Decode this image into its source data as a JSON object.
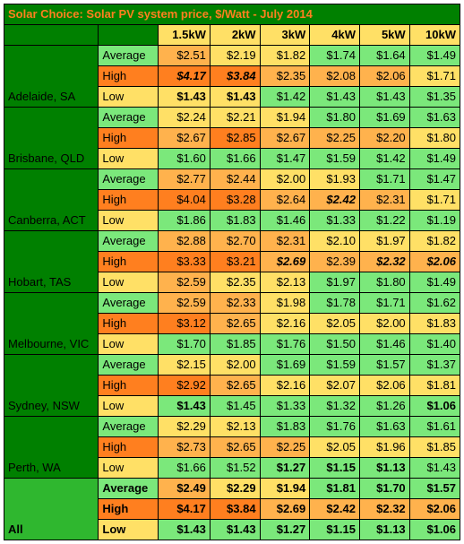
{
  "title": "Solar Choice: Solar PV system price, $/Watt - July 2014",
  "colors": {
    "darkGreen": "#008000",
    "mediumGreen": "#2fb72f",
    "lightGreen": "#7be87b",
    "yellow": "#ffe066",
    "lightOrange": "#ffb24d",
    "orange": "#ff7f1f",
    "titleText": "#ff7f1f",
    "titleBg": "#008000"
  },
  "headers": [
    "1.5kW",
    "2kW",
    "3kW",
    "4kW",
    "5kW",
    "10kW"
  ],
  "stats": [
    "Average",
    "High",
    "Low"
  ],
  "cities": [
    {
      "name": "Adelaide, SA",
      "rows": [
        {
          "stat": "Average",
          "bg": "lightGreen",
          "vals": [
            {
              "v": "$2.51",
              "bg": "lightOrange"
            },
            {
              "v": "$2.19",
              "bg": "yellow"
            },
            {
              "v": "$1.82",
              "bg": "yellow"
            },
            {
              "v": "$1.74",
              "bg": "lightGreen"
            },
            {
              "v": "$1.64",
              "bg": "lightGreen"
            },
            {
              "v": "$1.49",
              "bg": "lightGreen"
            }
          ]
        },
        {
          "stat": "High",
          "bg": "orange",
          "vals": [
            {
              "v": "$4.17",
              "bg": "orange",
              "style": "italic"
            },
            {
              "v": "$3.84",
              "bg": "orange",
              "style": "italic"
            },
            {
              "v": "$2.35",
              "bg": "lightOrange"
            },
            {
              "v": "$2.08",
              "bg": "lightOrange"
            },
            {
              "v": "$2.06",
              "bg": "lightOrange"
            },
            {
              "v": "$1.71",
              "bg": "yellow"
            }
          ]
        },
        {
          "stat": "Low",
          "bg": "yellow",
          "vals": [
            {
              "v": "$1.43",
              "bg": "yellow",
              "style": "bold"
            },
            {
              "v": "$1.43",
              "bg": "yellow",
              "style": "bold"
            },
            {
              "v": "$1.42",
              "bg": "lightGreen"
            },
            {
              "v": "$1.43",
              "bg": "lightGreen"
            },
            {
              "v": "$1.43",
              "bg": "lightGreen"
            },
            {
              "v": "$1.35",
              "bg": "lightGreen"
            }
          ]
        }
      ]
    },
    {
      "name": "Brisbane, QLD",
      "rows": [
        {
          "stat": "Average",
          "bg": "lightGreen",
          "vals": [
            {
              "v": "$2.24",
              "bg": "yellow"
            },
            {
              "v": "$2.21",
              "bg": "yellow"
            },
            {
              "v": "$1.94",
              "bg": "yellow"
            },
            {
              "v": "$1.80",
              "bg": "lightGreen"
            },
            {
              "v": "$1.69",
              "bg": "lightGreen"
            },
            {
              "v": "$1.63",
              "bg": "lightGreen"
            }
          ]
        },
        {
          "stat": "High",
          "bg": "orange",
          "vals": [
            {
              "v": "$2.67",
              "bg": "lightOrange"
            },
            {
              "v": "$2.85",
              "bg": "orange"
            },
            {
              "v": "$2.67",
              "bg": "lightOrange"
            },
            {
              "v": "$2.25",
              "bg": "lightOrange"
            },
            {
              "v": "$2.20",
              "bg": "lightOrange"
            },
            {
              "v": "$1.80",
              "bg": "yellow"
            }
          ]
        },
        {
          "stat": "Low",
          "bg": "yellow",
          "vals": [
            {
              "v": "$1.60",
              "bg": "lightGreen"
            },
            {
              "v": "$1.66",
              "bg": "lightGreen"
            },
            {
              "v": "$1.47",
              "bg": "lightGreen"
            },
            {
              "v": "$1.59",
              "bg": "lightGreen"
            },
            {
              "v": "$1.42",
              "bg": "lightGreen"
            },
            {
              "v": "$1.49",
              "bg": "lightGreen"
            }
          ]
        }
      ]
    },
    {
      "name": "Canberra, ACT",
      "rows": [
        {
          "stat": "Average",
          "bg": "lightGreen",
          "vals": [
            {
              "v": "$2.77",
              "bg": "lightOrange"
            },
            {
              "v": "$2.44",
              "bg": "lightOrange"
            },
            {
              "v": "$2.00",
              "bg": "yellow"
            },
            {
              "v": "$1.93",
              "bg": "yellow"
            },
            {
              "v": "$1.71",
              "bg": "lightGreen"
            },
            {
              "v": "$1.47",
              "bg": "lightGreen"
            }
          ]
        },
        {
          "stat": "High",
          "bg": "orange",
          "vals": [
            {
              "v": "$4.04",
              "bg": "orange"
            },
            {
              "v": "$3.28",
              "bg": "orange"
            },
            {
              "v": "$2.64",
              "bg": "lightOrange"
            },
            {
              "v": "$2.42",
              "bg": "lightOrange",
              "style": "italic"
            },
            {
              "v": "$2.31",
              "bg": "lightOrange"
            },
            {
              "v": "$1.71",
              "bg": "yellow"
            }
          ]
        },
        {
          "stat": "Low",
          "bg": "yellow",
          "vals": [
            {
              "v": "$1.86",
              "bg": "lightGreen"
            },
            {
              "v": "$1.83",
              "bg": "lightGreen"
            },
            {
              "v": "$1.46",
              "bg": "lightGreen"
            },
            {
              "v": "$1.33",
              "bg": "lightGreen"
            },
            {
              "v": "$1.22",
              "bg": "lightGreen"
            },
            {
              "v": "$1.19",
              "bg": "lightGreen"
            }
          ]
        }
      ]
    },
    {
      "name": "Hobart, TAS",
      "rows": [
        {
          "stat": "Average",
          "bg": "lightGreen",
          "vals": [
            {
              "v": "$2.88",
              "bg": "lightOrange"
            },
            {
              "v": "$2.70",
              "bg": "lightOrange"
            },
            {
              "v": "$2.31",
              "bg": "lightOrange"
            },
            {
              "v": "$2.10",
              "bg": "yellow"
            },
            {
              "v": "$1.97",
              "bg": "yellow"
            },
            {
              "v": "$1.82",
              "bg": "yellow"
            }
          ]
        },
        {
          "stat": "High",
          "bg": "orange",
          "vals": [
            {
              "v": "$3.33",
              "bg": "orange"
            },
            {
              "v": "$3.21",
              "bg": "orange"
            },
            {
              "v": "$2.69",
              "bg": "lightOrange",
              "style": "italic"
            },
            {
              "v": "$2.39",
              "bg": "lightOrange"
            },
            {
              "v": "$2.32",
              "bg": "lightOrange",
              "style": "italic"
            },
            {
              "v": "$2.06",
              "bg": "lightOrange",
              "style": "italic"
            }
          ]
        },
        {
          "stat": "Low",
          "bg": "yellow",
          "vals": [
            {
              "v": "$2.59",
              "bg": "lightOrange"
            },
            {
              "v": "$2.35",
              "bg": "yellow"
            },
            {
              "v": "$2.13",
              "bg": "yellow"
            },
            {
              "v": "$1.97",
              "bg": "lightGreen"
            },
            {
              "v": "$1.80",
              "bg": "lightGreen"
            },
            {
              "v": "$1.49",
              "bg": "lightGreen"
            }
          ]
        }
      ]
    },
    {
      "name": "Melbourne, VIC",
      "rows": [
        {
          "stat": "Average",
          "bg": "lightGreen",
          "vals": [
            {
              "v": "$2.59",
              "bg": "lightOrange"
            },
            {
              "v": "$2.33",
              "bg": "lightOrange"
            },
            {
              "v": "$1.98",
              "bg": "yellow"
            },
            {
              "v": "$1.78",
              "bg": "lightGreen"
            },
            {
              "v": "$1.71",
              "bg": "lightGreen"
            },
            {
              "v": "$1.62",
              "bg": "lightGreen"
            }
          ]
        },
        {
          "stat": "High",
          "bg": "orange",
          "vals": [
            {
              "v": "$3.12",
              "bg": "orange"
            },
            {
              "v": "$2.65",
              "bg": "lightOrange"
            },
            {
              "v": "$2.16",
              "bg": "yellow"
            },
            {
              "v": "$2.05",
              "bg": "yellow"
            },
            {
              "v": "$2.00",
              "bg": "yellow"
            },
            {
              "v": "$1.83",
              "bg": "yellow"
            }
          ]
        },
        {
          "stat": "Low",
          "bg": "yellow",
          "vals": [
            {
              "v": "$1.70",
              "bg": "lightGreen"
            },
            {
              "v": "$1.85",
              "bg": "lightGreen"
            },
            {
              "v": "$1.76",
              "bg": "lightGreen"
            },
            {
              "v": "$1.50",
              "bg": "lightGreen"
            },
            {
              "v": "$1.46",
              "bg": "lightGreen"
            },
            {
              "v": "$1.40",
              "bg": "lightGreen"
            }
          ]
        }
      ]
    },
    {
      "name": "Sydney, NSW",
      "rows": [
        {
          "stat": "Average",
          "bg": "lightGreen",
          "vals": [
            {
              "v": "$2.15",
              "bg": "yellow"
            },
            {
              "v": "$2.00",
              "bg": "yellow"
            },
            {
              "v": "$1.69",
              "bg": "lightGreen"
            },
            {
              "v": "$1.59",
              "bg": "lightGreen"
            },
            {
              "v": "$1.57",
              "bg": "lightGreen"
            },
            {
              "v": "$1.37",
              "bg": "lightGreen"
            }
          ]
        },
        {
          "stat": "High",
          "bg": "orange",
          "vals": [
            {
              "v": "$2.92",
              "bg": "orange"
            },
            {
              "v": "$2.65",
              "bg": "lightOrange"
            },
            {
              "v": "$2.16",
              "bg": "yellow"
            },
            {
              "v": "$2.07",
              "bg": "yellow"
            },
            {
              "v": "$2.06",
              "bg": "yellow"
            },
            {
              "v": "$1.81",
              "bg": "yellow"
            }
          ]
        },
        {
          "stat": "Low",
          "bg": "yellow",
          "vals": [
            {
              "v": "$1.43",
              "bg": "lightGreen",
              "style": "bold"
            },
            {
              "v": "$1.45",
              "bg": "lightGreen"
            },
            {
              "v": "$1.33",
              "bg": "lightGreen"
            },
            {
              "v": "$1.32",
              "bg": "lightGreen"
            },
            {
              "v": "$1.26",
              "bg": "lightGreen"
            },
            {
              "v": "$1.06",
              "bg": "lightGreen",
              "style": "bold"
            }
          ]
        }
      ]
    },
    {
      "name": "Perth, WA",
      "rows": [
        {
          "stat": "Average",
          "bg": "lightGreen",
          "vals": [
            {
              "v": "$2.29",
              "bg": "yellow"
            },
            {
              "v": "$2.13",
              "bg": "yellow"
            },
            {
              "v": "$1.83",
              "bg": "lightGreen"
            },
            {
              "v": "$1.76",
              "bg": "lightGreen"
            },
            {
              "v": "$1.63",
              "bg": "lightGreen"
            },
            {
              "v": "$1.61",
              "bg": "lightGreen"
            }
          ]
        },
        {
          "stat": "High",
          "bg": "orange",
          "vals": [
            {
              "v": "$2.73",
              "bg": "lightOrange"
            },
            {
              "v": "$2.65",
              "bg": "lightOrange"
            },
            {
              "v": "$2.25",
              "bg": "lightOrange"
            },
            {
              "v": "$2.05",
              "bg": "yellow"
            },
            {
              "v": "$1.96",
              "bg": "yellow"
            },
            {
              "v": "$1.85",
              "bg": "yellow"
            }
          ]
        },
        {
          "stat": "Low",
          "bg": "yellow",
          "vals": [
            {
              "v": "$1.66",
              "bg": "lightGreen"
            },
            {
              "v": "$1.52",
              "bg": "lightGreen"
            },
            {
              "v": "$1.27",
              "bg": "lightGreen",
              "style": "bold"
            },
            {
              "v": "$1.15",
              "bg": "lightGreen",
              "style": "bold"
            },
            {
              "v": "$1.13",
              "bg": "lightGreen",
              "style": "bold"
            },
            {
              "v": "$1.43",
              "bg": "lightGreen"
            }
          ]
        }
      ]
    }
  ],
  "allRow": {
    "name": "All",
    "rows": [
      {
        "stat": "Average",
        "bg": "lightGreen",
        "vals": [
          {
            "v": "$2.49",
            "bg": "lightOrange"
          },
          {
            "v": "$2.29",
            "bg": "yellow"
          },
          {
            "v": "$1.94",
            "bg": "yellow"
          },
          {
            "v": "$1.81",
            "bg": "lightGreen"
          },
          {
            "v": "$1.70",
            "bg": "lightGreen"
          },
          {
            "v": "$1.57",
            "bg": "lightGreen"
          }
        ]
      },
      {
        "stat": "High",
        "bg": "orange",
        "vals": [
          {
            "v": "$4.17",
            "bg": "orange"
          },
          {
            "v": "$3.84",
            "bg": "orange"
          },
          {
            "v": "$2.69",
            "bg": "lightOrange"
          },
          {
            "v": "$2.42",
            "bg": "lightOrange"
          },
          {
            "v": "$2.32",
            "bg": "lightOrange"
          },
          {
            "v": "$2.06",
            "bg": "lightOrange"
          }
        ]
      },
      {
        "stat": "Low",
        "bg": "yellow",
        "vals": [
          {
            "v": "$1.43",
            "bg": "lightGreen"
          },
          {
            "v": "$1.43",
            "bg": "lightGreen"
          },
          {
            "v": "$1.27",
            "bg": "lightGreen"
          },
          {
            "v": "$1.15",
            "bg": "lightGreen"
          },
          {
            "v": "$1.13",
            "bg": "lightGreen"
          },
          {
            "v": "$1.06",
            "bg": "lightGreen"
          }
        ]
      }
    ]
  }
}
